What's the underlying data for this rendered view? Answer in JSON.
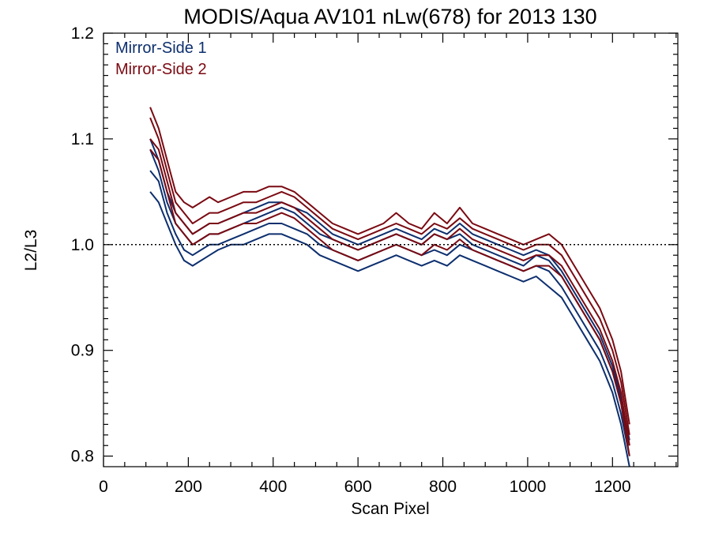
{
  "chart_data": {
    "type": "line",
    "title": "MODIS/Aqua AV101 nLw(678) for 2013 130",
    "xlabel": "Scan Pixel",
    "ylabel": "L2/L3",
    "xlim": [
      0,
      1354
    ],
    "ylim": [
      0.79,
      1.2
    ],
    "x_ticks": [
      0,
      200,
      400,
      600,
      800,
      1000,
      1200
    ],
    "y_ticks": [
      0.8,
      0.9,
      1.0,
      1.1,
      1.2
    ],
    "x_tick_labels": [
      "0",
      "200",
      "400",
      "600",
      "800",
      "1000",
      "1200"
    ],
    "y_tick_labels": [
      "0.8",
      "0.9",
      "1.0",
      "1.1",
      "1.2"
    ],
    "reference_line": {
      "y": 1.0,
      "style": "dotted"
    },
    "grid": false,
    "legend_position": "top-left",
    "x": [
      110,
      130,
      150,
      170,
      190,
      210,
      230,
      250,
      270,
      300,
      330,
      360,
      390,
      420,
      450,
      480,
      510,
      540,
      570,
      600,
      630,
      660,
      690,
      720,
      750,
      780,
      810,
      840,
      870,
      900,
      930,
      960,
      990,
      1020,
      1050,
      1080,
      1110,
      1140,
      1170,
      1200,
      1220,
      1240
    ],
    "series": [
      {
        "name": "Mirror-Side 1",
        "color": "#0d2f6e",
        "values": [
          1.09,
          1.07,
          1.04,
          1.02,
          1.01,
          1.0,
          1.005,
          1.01,
          1.01,
          1.015,
          1.02,
          1.025,
          1.03,
          1.035,
          1.03,
          1.02,
          1.01,
          1.005,
          1.0,
          0.995,
          1.0,
          1.005,
          1.01,
          1.005,
          1.0,
          1.01,
          1.005,
          1.01,
          1.0,
          0.995,
          0.99,
          0.985,
          0.98,
          0.99,
          0.985,
          0.97,
          0.95,
          0.93,
          0.91,
          0.88,
          0.85,
          0.81
        ]
      },
      {
        "name": "",
        "color": "#0d2f6e",
        "values": [
          1.05,
          1.04,
          1.02,
          1.0,
          0.985,
          0.98,
          0.985,
          0.99,
          0.995,
          1.0,
          1.0,
          1.005,
          1.01,
          1.01,
          1.005,
          1.0,
          0.99,
          0.985,
          0.98,
          0.975,
          0.98,
          0.985,
          0.99,
          0.985,
          0.98,
          0.985,
          0.98,
          0.99,
          0.985,
          0.98,
          0.975,
          0.97,
          0.965,
          0.97,
          0.96,
          0.95,
          0.93,
          0.91,
          0.89,
          0.86,
          0.83,
          0.79
        ]
      },
      {
        "name": "",
        "color": "#0d2f6e",
        "values": [
          1.1,
          1.08,
          1.05,
          1.03,
          1.02,
          1.01,
          1.015,
          1.02,
          1.02,
          1.025,
          1.03,
          1.035,
          1.04,
          1.04,
          1.035,
          1.03,
          1.02,
          1.01,
          1.005,
          1.0,
          1.005,
          1.01,
          1.015,
          1.01,
          1.005,
          1.015,
          1.01,
          1.02,
          1.01,
          1.005,
          1.0,
          0.995,
          0.99,
          0.995,
          0.99,
          0.975,
          0.955,
          0.935,
          0.915,
          0.885,
          0.855,
          0.815
        ]
      },
      {
        "name": "",
        "color": "#0d2f6e",
        "values": [
          1.07,
          1.06,
          1.03,
          1.01,
          0.995,
          0.99,
          0.995,
          1.0,
          1.0,
          1.005,
          1.01,
          1.015,
          1.02,
          1.02,
          1.015,
          1.01,
          1.0,
          0.995,
          0.99,
          0.985,
          0.99,
          0.995,
          1.0,
          0.995,
          0.99,
          0.995,
          0.99,
          1.0,
          0.995,
          0.99,
          0.985,
          0.98,
          0.975,
          0.98,
          0.975,
          0.96,
          0.94,
          0.92,
          0.9,
          0.87,
          0.84,
          0.8
        ]
      },
      {
        "name": "Mirror-Side 2",
        "color": "#7a0a12",
        "values": [
          1.12,
          1.1,
          1.07,
          1.04,
          1.03,
          1.02,
          1.025,
          1.03,
          1.03,
          1.035,
          1.04,
          1.04,
          1.045,
          1.05,
          1.045,
          1.035,
          1.025,
          1.015,
          1.01,
          1.005,
          1.01,
          1.015,
          1.02,
          1.015,
          1.01,
          1.02,
          1.015,
          1.025,
          1.015,
          1.01,
          1.005,
          1.0,
          0.995,
          1.0,
          1.0,
          0.99,
          0.97,
          0.95,
          0.93,
          0.9,
          0.87,
          0.82
        ]
      },
      {
        "name": "",
        "color": "#7a0a12",
        "values": [
          1.1,
          1.09,
          1.06,
          1.03,
          1.02,
          1.01,
          1.015,
          1.02,
          1.02,
          1.025,
          1.03,
          1.03,
          1.035,
          1.04,
          1.035,
          1.025,
          1.015,
          1.005,
          1.0,
          0.995,
          1.0,
          1.005,
          1.01,
          1.005,
          1.0,
          1.01,
          1.005,
          1.015,
          1.005,
          1.0,
          0.995,
          0.99,
          0.985,
          0.99,
          0.99,
          0.98,
          0.96,
          0.94,
          0.92,
          0.89,
          0.86,
          0.81
        ]
      },
      {
        "name": "",
        "color": "#7a0a12",
        "values": [
          1.13,
          1.11,
          1.08,
          1.05,
          1.04,
          1.035,
          1.04,
          1.045,
          1.04,
          1.045,
          1.05,
          1.05,
          1.055,
          1.055,
          1.05,
          1.04,
          1.03,
          1.02,
          1.015,
          1.01,
          1.015,
          1.02,
          1.03,
          1.02,
          1.015,
          1.03,
          1.02,
          1.035,
          1.02,
          1.015,
          1.01,
          1.005,
          1.0,
          1.005,
          1.01,
          1.0,
          0.98,
          0.96,
          0.94,
          0.91,
          0.88,
          0.83
        ]
      },
      {
        "name": "",
        "color": "#7a0a12",
        "values": [
          1.09,
          1.08,
          1.05,
          1.02,
          1.01,
          1.0,
          1.005,
          1.01,
          1.01,
          1.015,
          1.02,
          1.02,
          1.025,
          1.03,
          1.025,
          1.015,
          1.005,
          0.995,
          0.99,
          0.985,
          0.99,
          0.995,
          1.0,
          0.995,
          0.99,
          1.0,
          0.995,
          1.005,
          0.995,
          0.99,
          0.985,
          0.98,
          0.975,
          0.98,
          0.98,
          0.97,
          0.95,
          0.93,
          0.91,
          0.88,
          0.85,
          0.8
        ]
      }
    ]
  }
}
